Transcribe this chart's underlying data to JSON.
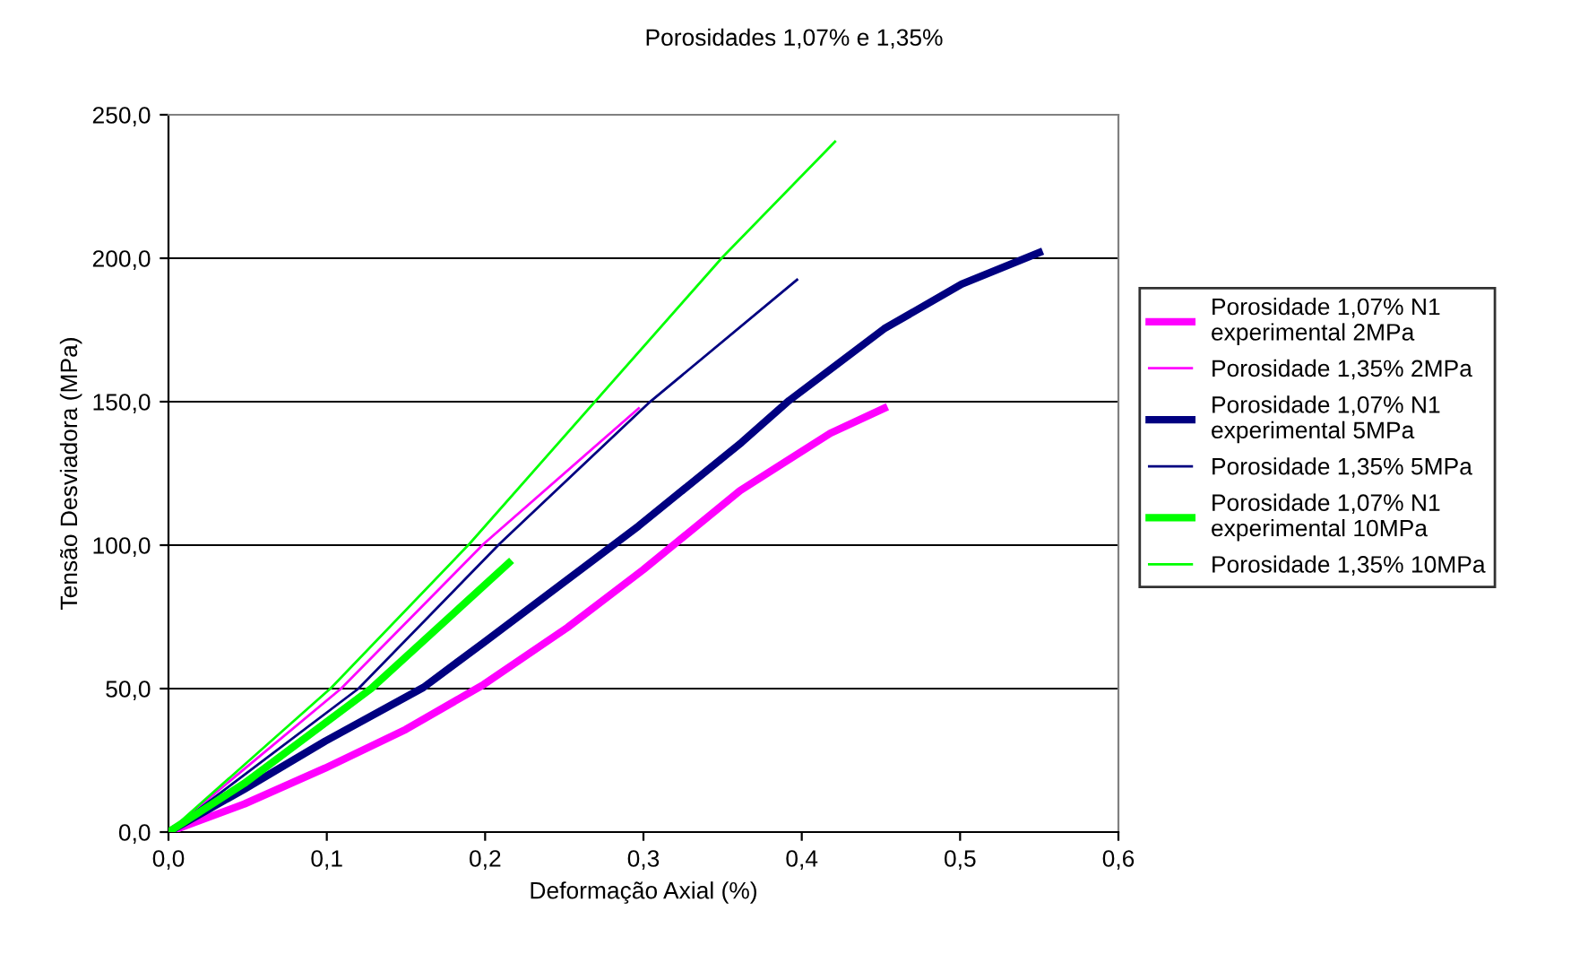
{
  "chart_data": {
    "type": "line",
    "title": "Porosidades 1,07% e 1,35%",
    "xlabel": "Deformação Axial (%)",
    "ylabel": "Tensão Desviadora (MPa)",
    "xlim": [
      0,
      0.6
    ],
    "ylim": [
      0,
      250
    ],
    "xticks": [
      {
        "value": 0,
        "label": "0,0"
      },
      {
        "value": 0.1,
        "label": "0,1"
      },
      {
        "value": 0.2,
        "label": "0,2"
      },
      {
        "value": 0.3,
        "label": "0,3"
      },
      {
        "value": 0.4,
        "label": "0,4"
      },
      {
        "value": 0.5,
        "label": "0,5"
      },
      {
        "value": 0.6,
        "label": "0,6"
      }
    ],
    "yticks": [
      {
        "value": 0,
        "label": "0,0"
      },
      {
        "value": 50,
        "label": "50,0"
      },
      {
        "value": 100,
        "label": "100,0"
      },
      {
        "value": 150,
        "label": "150,0"
      },
      {
        "value": 200,
        "label": "200,0"
      },
      {
        "value": 250,
        "label": "250,0"
      }
    ],
    "grid": "y",
    "legend": "right",
    "marker": "none",
    "line_style": "solid",
    "series": [
      {
        "name": "Porosidade 1,07% N1 experimental 2MPa",
        "color": "#ff00ff",
        "x": [
          0,
          0.048,
          0.099,
          0.15,
          0.199,
          0.252,
          0.3,
          0.361,
          0.418,
          0.452
        ],
        "values": [
          0,
          9.8,
          22.3,
          35.8,
          51.4,
          71.3,
          91.5,
          119,
          139,
          147.7
        ]
      },
      {
        "name": "Porosidade 1,35% 2MPa",
        "color": "#ff00ff",
        "x": [
          0,
          0.109,
          0.199,
          0.297
        ],
        "values": [
          0,
          50,
          100.4,
          147.7
        ]
      },
      {
        "name": "Porosidade 1,07% N1 experimental 5MPa",
        "color": "#000080",
        "x": [
          0,
          0.048,
          0.099,
          0.161,
          0.199,
          0.297,
          0.362,
          0.392,
          0.452,
          0.501,
          0.55
        ],
        "values": [
          0,
          15,
          31.7,
          50.4,
          66,
          106.7,
          135.8,
          150.4,
          175.4,
          191,
          202
        ]
      },
      {
        "name": "Porosidade 1,35% 5MPa",
        "color": "#000080",
        "x": [
          0,
          0.12,
          0.209,
          0.303,
          0.397
        ],
        "values": [
          0,
          50,
          100.4,
          149.4,
          192.5
        ]
      },
      {
        "name": "Porosidade 1,07% N1 experimental 10MPa",
        "color": "#00ff00",
        "x": [
          0,
          0.048,
          0.128,
          0.215
        ],
        "values": [
          0,
          17,
          50,
          93.8
        ]
      },
      {
        "name": "Porosidade 1,35% 10MPa",
        "color": "#00ff00",
        "x": [
          0,
          0.103,
          0.19,
          0.35,
          0.421
        ],
        "values": [
          0,
          50.4,
          100.4,
          200.4,
          240.6
        ]
      }
    ]
  }
}
